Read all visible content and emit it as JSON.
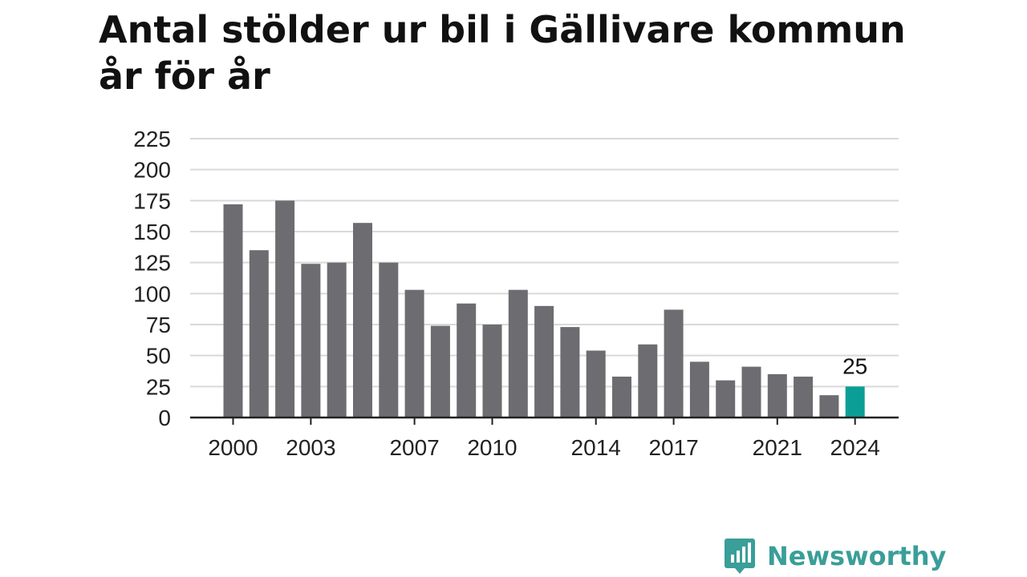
{
  "title": "Antal stölder ur bil i Gällivare kommun år för år",
  "brand": {
    "name": "Newsworthy",
    "color": "#3a9e99",
    "icon": "newsworthy-logo-icon"
  },
  "colors": {
    "bar": "#6d6c71",
    "highlight": "#0b9e96",
    "grid": "#d9d9d9",
    "axis": "#222222"
  },
  "chart_data": {
    "type": "bar",
    "title": "Antal stölder ur bil i Gällivare kommun år för år",
    "xlabel": "",
    "ylabel": "",
    "ylim": [
      0,
      225
    ],
    "yticks": [
      0,
      25,
      50,
      75,
      100,
      125,
      150,
      175,
      200,
      225
    ],
    "grid": true,
    "categories": [
      2000,
      2001,
      2002,
      2003,
      2004,
      2005,
      2006,
      2007,
      2008,
      2009,
      2010,
      2011,
      2012,
      2013,
      2014,
      2015,
      2016,
      2017,
      2018,
      2019,
      2020,
      2021,
      2022,
      2023,
      2024
    ],
    "values": [
      172,
      135,
      175,
      124,
      125,
      157,
      125,
      103,
      74,
      92,
      75,
      103,
      90,
      73,
      54,
      33,
      59,
      87,
      45,
      30,
      41,
      35,
      33,
      18,
      25
    ],
    "xtick_labels": [
      2000,
      2003,
      2007,
      2010,
      2014,
      2017,
      2021,
      2024
    ],
    "highlight": {
      "category": 2024,
      "label": "25"
    }
  }
}
